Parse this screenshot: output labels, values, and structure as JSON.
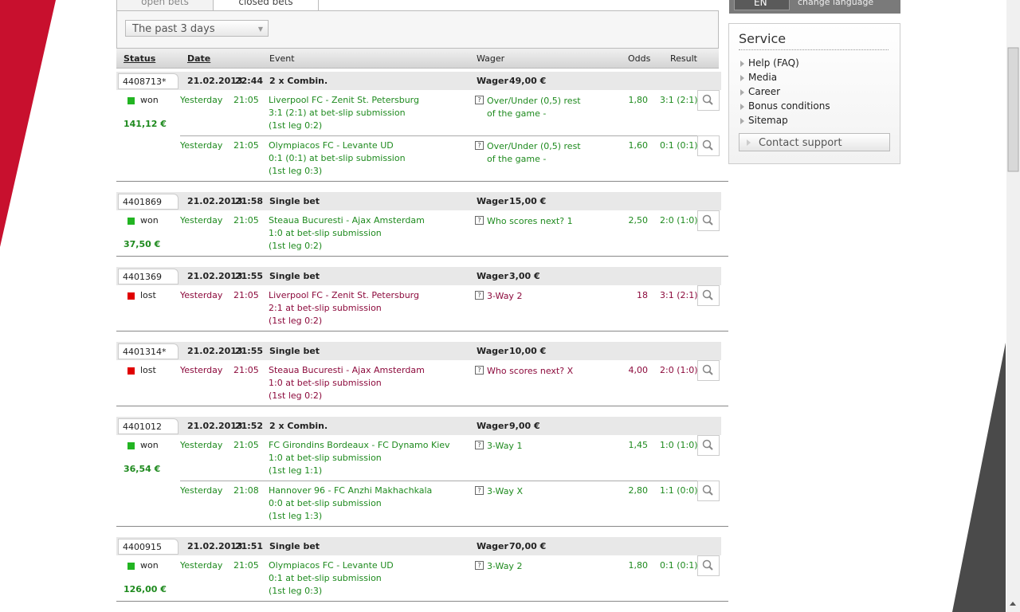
{
  "tabs": [
    "open bets",
    "closed bets"
  ],
  "filter": "The past 3 days",
  "columns": {
    "status": "Status",
    "date": "Date",
    "event": "Event",
    "wager": "Wager",
    "odds": "Odds",
    "result": "Result"
  },
  "sidebar": {
    "language": "EN",
    "change_language": "change language",
    "service_title": "Service",
    "links": [
      "Help (FAQ)",
      "Media",
      "Career",
      "Bonus conditions",
      "Sitemap"
    ],
    "button": "Contact support"
  },
  "bets": [
    {
      "id": "4408713*",
      "date": "21.02.2013",
      "time": "22:44",
      "type": "2 x Combin.",
      "wager_label": "Wager",
      "wager": "49,00 €",
      "status": "won",
      "winnings": "141,12 €",
      "legs": [
        {
          "day": "Yesterday",
          "time": "21:05",
          "match": "Liverpool FC - Zenit St. Petersburg",
          "score": "3:1 (2:1) at bet-slip submission",
          "first_leg": "(1st leg 0:2)",
          "bet": "Over/Under (0,5) rest of the game -",
          "odds": "1,80",
          "result": "3:1 (2:1)"
        },
        {
          "day": "Yesterday",
          "time": "21:05",
          "match": "Olympiacos FC - Levante UD",
          "score": "0:1 (0:1) at bet-slip submission",
          "first_leg": "(1st leg 0:3)",
          "bet": "Over/Under (0,5) rest of the game -",
          "odds": "1,60",
          "result": "0:1 (0:1)"
        }
      ]
    },
    {
      "id": "4401869",
      "date": "21.02.2013",
      "time": "21:58",
      "type": "Single bet",
      "wager_label": "Wager",
      "wager": "15,00 €",
      "status": "won",
      "winnings": "37,50 €",
      "legs": [
        {
          "day": "Yesterday",
          "time": "21:05",
          "match": "Steaua Bucuresti - Ajax Amsterdam",
          "score": "1:0 at bet-slip submission",
          "first_leg": "(1st leg 0:2)",
          "bet": "Who scores next? 1",
          "odds": "2,50",
          "result": "2:0 (1:0)"
        }
      ]
    },
    {
      "id": "4401369",
      "date": "21.02.2013",
      "time": "21:55",
      "type": "Single bet",
      "wager_label": "Wager",
      "wager": "3,00 €",
      "status": "lost",
      "legs": [
        {
          "day": "Yesterday",
          "time": "21:05",
          "match": "Liverpool FC - Zenit St. Petersburg",
          "score": "2:1 at bet-slip submission",
          "first_leg": "(1st leg 0:2)",
          "bet": "3-Way 2",
          "odds": "18",
          "result": "3:1 (2:1)"
        }
      ]
    },
    {
      "id": "4401314*",
      "date": "21.02.2013",
      "time": "21:55",
      "type": "Single bet",
      "wager_label": "Wager",
      "wager": "10,00 €",
      "status": "lost",
      "legs": [
        {
          "day": "Yesterday",
          "time": "21:05",
          "match": "Steaua Bucuresti - Ajax Amsterdam",
          "score": "1:0 at bet-slip submission",
          "first_leg": "(1st leg 0:2)",
          "bet": "Who scores next? X",
          "odds": "4,00",
          "result": "2:0 (1:0)"
        }
      ]
    },
    {
      "id": "4401012",
      "date": "21.02.2013",
      "time": "21:52",
      "type": "2 x Combin.",
      "wager_label": "Wager",
      "wager": "9,00 €",
      "status": "won",
      "winnings": "36,54 €",
      "legs": [
        {
          "day": "Yesterday",
          "time": "21:05",
          "match": "FC Girondins Bordeaux - FC Dynamo Kiev",
          "score": "1:0 at bet-slip submission",
          "first_leg": "(1st leg 1:1)",
          "bet": "3-Way 1",
          "odds": "1,45",
          "result": "1:0 (1:0)"
        },
        {
          "day": "Yesterday",
          "time": "21:08",
          "match": "Hannover 96 - FC Anzhi Makhachkala",
          "score": "0:0 at bet-slip submission",
          "first_leg": "(1st leg 1:3)",
          "bet": "3-Way X",
          "odds": "2,80",
          "result": "1:1 (0:0)"
        }
      ]
    },
    {
      "id": "4400915",
      "date": "21.02.2013",
      "time": "21:51",
      "type": "Single bet",
      "wager_label": "Wager",
      "wager": "70,00 €",
      "status": "won",
      "winnings": "126,00 €",
      "legs": [
        {
          "day": "Yesterday",
          "time": "21:05",
          "match": "Olympiacos FC - Levante UD",
          "score": "0:1 at bet-slip submission",
          "first_leg": "(1st leg 0:3)",
          "bet": "3-Way 2",
          "odds": "1,80",
          "result": "0:1 (0:1)"
        }
      ]
    }
  ]
}
